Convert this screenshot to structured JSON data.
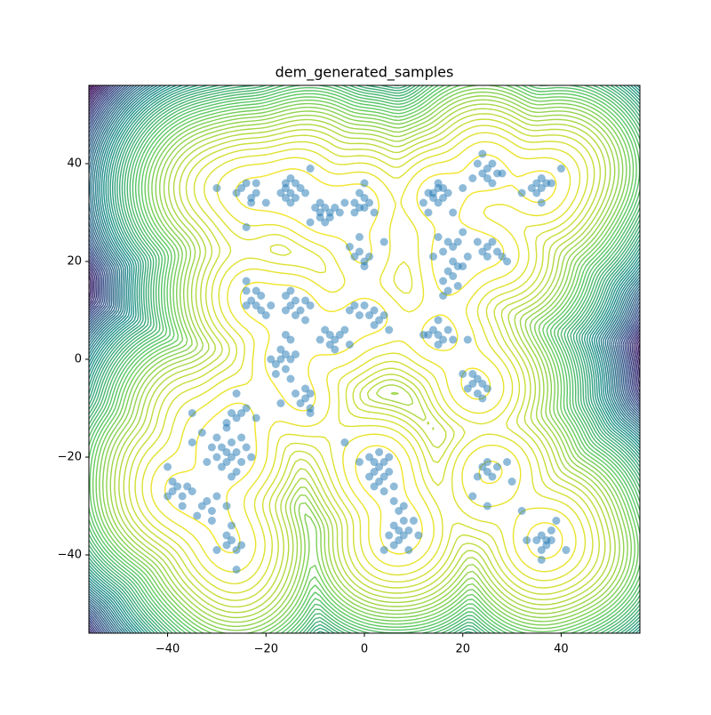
{
  "chart_data": {
    "type": "scatter",
    "title": "dem_generated_samples",
    "x": [
      -25,
      -23,
      -24,
      -22,
      -26,
      -23,
      -24,
      -30,
      -20,
      -22,
      -16,
      -15,
      -14,
      -16,
      -15,
      -17,
      -14,
      -13,
      -16,
      -15,
      -11,
      -12,
      -9,
      -8,
      -7,
      -9,
      -6,
      -8,
      -10,
      -7,
      -5,
      -9,
      -11,
      -4,
      -2,
      0,
      -1,
      1,
      -2,
      0,
      -1,
      0,
      2,
      -1,
      0,
      1,
      -2,
      0,
      -3,
      4,
      -1,
      14,
      15,
      16,
      14,
      15,
      16,
      13,
      17,
      15,
      12,
      18,
      20,
      13,
      25,
      24,
      26,
      25,
      27,
      23,
      26,
      24,
      28,
      22,
      35,
      36,
      37,
      36,
      34,
      38,
      35,
      40,
      32,
      36,
      17,
      18,
      19,
      16,
      18,
      19,
      17,
      20,
      18,
      16,
      19,
      17,
      21,
      15,
      20,
      14,
      16,
      25,
      24,
      26,
      25,
      27,
      23,
      28,
      29,
      -23,
      -22,
      -21,
      -24,
      -22,
      -21,
      -24,
      -19,
      -24,
      -20,
      -15,
      -14,
      -13,
      -16,
      -14,
      -12,
      -16,
      -15,
      -11,
      -12,
      -7,
      -6,
      -8,
      -5,
      -7,
      -4,
      -9,
      -6,
      -3,
      1,
      2,
      3,
      -1,
      4,
      0,
      2,
      -3,
      5,
      -2,
      -17,
      -16,
      -18,
      -15,
      -17,
      -19,
      -16,
      -14,
      -15,
      -16,
      -18,
      -15,
      15,
      14,
      16,
      13,
      17,
      15,
      12,
      18,
      21,
      15,
      22,
      23,
      21,
      24,
      22,
      20,
      23,
      25,
      24,
      -12,
      -11,
      -13,
      -12,
      -11,
      -14,
      -11,
      -17,
      -28,
      -27,
      -29,
      -26,
      -28,
      -30,
      -27,
      -25,
      -29,
      -31,
      -26,
      -30,
      -24,
      -32,
      -27,
      -25,
      -33,
      -28,
      -23,
      -27,
      -26,
      -28,
      -25,
      -26,
      -22,
      -24,
      -35,
      -35,
      -39,
      -38,
      -37,
      -39,
      -36,
      -40,
      -37,
      -40,
      -35,
      -33,
      -32,
      -31,
      -30,
      -34,
      -31,
      -28,
      -27,
      -28,
      -27,
      -26,
      -28,
      -25,
      -30,
      -26,
      2,
      3,
      4,
      2,
      3,
      4,
      1,
      5,
      2,
      4,
      1,
      5,
      3,
      -1,
      6,
      -4,
      7,
      8,
      6,
      7,
      8,
      6,
      9,
      5,
      7,
      8,
      9,
      6,
      10,
      4,
      11,
      25,
      24,
      26,
      25,
      23,
      27,
      29,
      30,
      22,
      25,
      37,
      36,
      38,
      37,
      35,
      38,
      36,
      33,
      36,
      39,
      41,
      32
    ],
    "values": [
      35,
      33,
      36,
      34,
      34,
      32,
      27,
      35,
      32,
      36,
      35,
      34,
      36,
      33,
      37,
      34,
      33,
      35,
      36,
      32,
      39,
      34,
      30,
      31,
      29,
      29,
      31,
      28,
      31,
      30,
      30,
      32,
      28,
      32,
      32,
      33,
      31,
      32,
      30,
      31,
      34,
      36,
      30,
      22,
      20,
      21,
      21,
      19,
      23,
      24,
      25,
      34,
      35,
      33,
      33,
      32,
      35,
      34,
      34,
      36,
      32,
      30,
      35,
      30,
      39,
      38,
      40,
      37,
      38,
      40,
      36,
      42,
      38,
      37,
      36,
      35,
      36,
      37,
      35,
      36,
      34,
      39,
      34,
      32,
      24,
      23,
      24,
      22,
      20,
      19,
      18,
      19,
      17,
      16,
      15,
      14,
      21,
      25,
      26,
      21,
      13,
      23,
      22,
      24,
      21,
      22,
      24,
      21,
      20,
      12,
      11,
      13,
      11,
      14,
      10,
      14,
      11,
      16,
      9,
      11,
      12,
      10,
      10,
      9,
      12,
      13,
      14,
      11,
      8,
      5,
      4,
      6,
      5,
      3,
      6,
      4,
      2,
      3,
      9,
      10,
      8,
      9,
      9,
      11,
      7,
      10,
      6,
      11,
      0,
      1,
      -1,
      0,
      2,
      0,
      -2,
      1,
      4,
      5,
      -3,
      -4,
      5,
      6,
      4,
      5,
      6,
      3,
      5,
      4,
      4,
      8,
      -5,
      -4,
      -6,
      -5,
      -3,
      -3,
      -7,
      -6,
      -8,
      -8,
      -7,
      -9,
      -6,
      -10,
      -7,
      -11,
      -9,
      -19,
      -20,
      -18,
      -19,
      -21,
      -20,
      -17,
      -21,
      -22,
      -18,
      -23,
      -16,
      -18,
      -21,
      -24,
      -16,
      -15,
      -14,
      -20,
      -11,
      -12,
      -13,
      -11,
      -7,
      -12,
      -10,
      -11,
      -17,
      -27,
      -26,
      -28,
      -25,
      -26,
      -28,
      -30,
      -22,
      -27,
      -30,
      -29,
      -31,
      -28,
      -32,
      -33,
      -30,
      -34,
      -38,
      -37,
      -39,
      -36,
      -38,
      -39,
      -43,
      -21,
      -22,
      -21,
      -23,
      -25,
      -24,
      -20,
      -23,
      -26,
      -27,
      -24,
      -20,
      -19,
      -21,
      -26,
      -17,
      -35,
      -36,
      -34,
      -37,
      -33,
      -38,
      -35,
      -36,
      -31,
      -30,
      -39,
      -29,
      -33,
      -39,
      -36,
      -23,
      -22,
      -24,
      -21,
      -24,
      -22,
      -21,
      -25,
      -28,
      -30,
      -37,
      -36,
      -37,
      -38,
      -37,
      -35,
      -39,
      -37,
      -41,
      -33,
      -39,
      -31
    ],
    "color": "#1f77b4",
    "colormap": "viridis",
    "xlim": [
      -56,
      56
    ],
    "ylim": [
      -56,
      56
    ],
    "xticks": [
      {
        "value": -40,
        "label": "−40"
      },
      {
        "value": -20,
        "label": "−20"
      },
      0,
      20,
      40
    ],
    "yticks": [
      {
        "value": -40,
        "label": "−40"
      },
      {
        "value": -20,
        "label": "−20"
      },
      0,
      20,
      40
    ]
  }
}
